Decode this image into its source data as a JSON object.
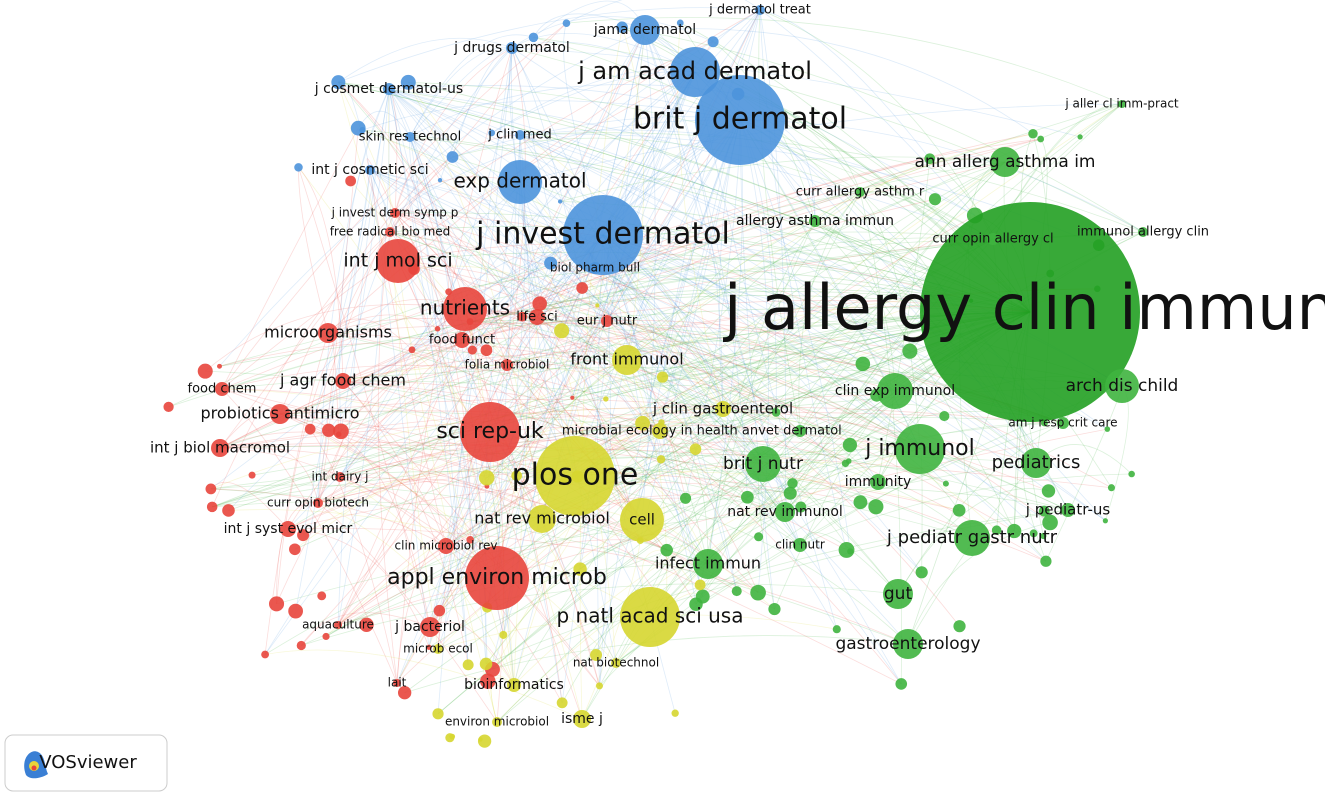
{
  "nodes": [
    {
      "label": "j allergy clin immun"
    },
    {
      "label": "brit j dermatol"
    },
    {
      "label": "j invest dermatol"
    },
    {
      "label": "j am acad dermatol"
    },
    {
      "label": "jama dermatol"
    },
    {
      "label": "j dermatol treat"
    },
    {
      "label": "j drugs dermatol"
    },
    {
      "label": "j cosmet dermatol-us"
    },
    {
      "label": "skin res technol"
    },
    {
      "label": "j clin med"
    },
    {
      "label": "int j cosmetic sci"
    },
    {
      "label": "exp dermatol"
    },
    {
      "label": "curr allergy asthm r"
    },
    {
      "label": "ann allerg asthma im"
    },
    {
      "label": "j aller cl imm-pract"
    },
    {
      "label": "allergy asthma immun"
    },
    {
      "label": "curr opin allergy cl"
    },
    {
      "label": "immunol allergy clin"
    },
    {
      "label": "j invest derm symp p"
    },
    {
      "label": "free radical bio med"
    },
    {
      "label": "biol pharm bull"
    },
    {
      "label": "int j mol sci"
    },
    {
      "label": "nutrients"
    },
    {
      "label": "life sci"
    },
    {
      "label": "eur j nutr"
    },
    {
      "label": "microorganisms"
    },
    {
      "label": "food funct"
    },
    {
      "label": "folia microbiol"
    },
    {
      "label": "front immunol"
    },
    {
      "label": "j agr food chem"
    },
    {
      "label": "food chem"
    },
    {
      "label": "clin exp immunol"
    },
    {
      "label": "arch dis child"
    },
    {
      "label": "probiotics antimicro"
    },
    {
      "label": "j clin gastroenterol"
    },
    {
      "label": "am j resp crit care"
    },
    {
      "label": "int j biol macromol"
    },
    {
      "label": "sci rep-uk"
    },
    {
      "label": "microbial ecology in health an"
    },
    {
      "label": "vet dermatol"
    },
    {
      "label": "j immunol"
    },
    {
      "label": "pediatrics"
    },
    {
      "label": "brit j nutr"
    },
    {
      "label": "plos one"
    },
    {
      "label": "int dairy j"
    },
    {
      "label": "immunity"
    },
    {
      "label": "curr opin biotech"
    },
    {
      "label": "j pediatr-us"
    },
    {
      "label": "nat rev microbiol"
    },
    {
      "label": "nat rev immunol"
    },
    {
      "label": "cell"
    },
    {
      "label": "int j syst evol micr"
    },
    {
      "label": "j pediatr gastr nutr"
    },
    {
      "label": "clin microbiol rev"
    },
    {
      "label": "clin nutr"
    },
    {
      "label": "infect immun"
    },
    {
      "label": "appl environ microb"
    },
    {
      "label": "gut"
    },
    {
      "label": "p natl acad sci usa"
    },
    {
      "label": "aquaculture"
    },
    {
      "label": "j bacteriol"
    },
    {
      "label": "gastroenterology"
    },
    {
      "label": "microb ecol"
    },
    {
      "label": "nat biotechnol"
    },
    {
      "label": "lait"
    },
    {
      "label": "bioinformatics"
    },
    {
      "label": "isme j"
    },
    {
      "label": "environ microbiol"
    }
  ],
  "logo": {
    "text": "VOSviewer"
  }
}
